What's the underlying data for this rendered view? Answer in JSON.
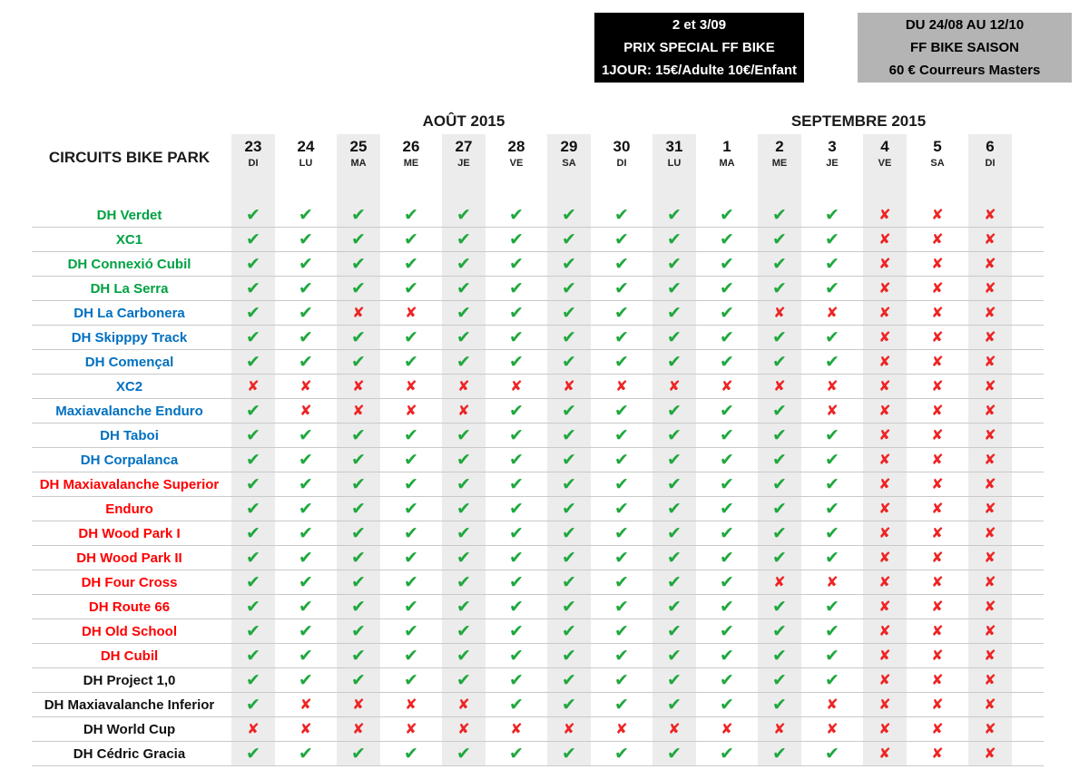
{
  "banners": {
    "special": {
      "bg": "#000000",
      "fg": "#ffffff",
      "lines": [
        "2 et 3/09",
        "PRIX SPECIAL FF BIKE",
        "1JOUR: 15€/Adulte 10€/Enfant"
      ]
    },
    "season": {
      "bg": "#b4b4b4",
      "fg": "#000000",
      "lines": [
        "DU 24/08 AU 12/10",
        "FF BIKE SAISON",
        "60 € Courreurs Masters"
      ]
    }
  },
  "colors": {
    "circuit_green": "#00a143",
    "circuit_blue": "#0070c0",
    "circuit_red": "#ff0000",
    "circuit_black": "#111111",
    "check_green": "#1fa83d",
    "cross_red": "#ee2424",
    "column_band_gray": "#ececec"
  },
  "chart_data": {
    "type": "table",
    "title": "CIRCUITS BIKE PARK",
    "column_groups": [
      {
        "label": "AOÛT 2015",
        "span": 9
      },
      {
        "label": "SEPTEMBRE 2015",
        "span": 6
      }
    ],
    "columns": [
      {
        "day": "23",
        "dow": "DI",
        "shaded": true
      },
      {
        "day": "24",
        "dow": "LU",
        "shaded": false
      },
      {
        "day": "25",
        "dow": "MA",
        "shaded": true
      },
      {
        "day": "26",
        "dow": "ME",
        "shaded": false
      },
      {
        "day": "27",
        "dow": "JE",
        "shaded": true
      },
      {
        "day": "28",
        "dow": "VE",
        "shaded": false
      },
      {
        "day": "29",
        "dow": "SA",
        "shaded": true
      },
      {
        "day": "30",
        "dow": "DI",
        "shaded": false
      },
      {
        "day": "31",
        "dow": "LU",
        "shaded": true
      },
      {
        "day": "1",
        "dow": "MA",
        "shaded": false
      },
      {
        "day": "2",
        "dow": "ME",
        "shaded": true
      },
      {
        "day": "3",
        "dow": "JE",
        "shaded": false
      },
      {
        "day": "4",
        "dow": "VE",
        "shaded": true
      },
      {
        "day": "5",
        "dow": "SA",
        "shaded": false
      },
      {
        "day": "6",
        "dow": "DI",
        "shaded": true
      }
    ],
    "legend": {
      "1": {
        "icon": "check-icon",
        "glyph": "✔",
        "meaning": "circuit open"
      },
      "0": {
        "icon": "cross-icon",
        "glyph": "✘",
        "meaning": "circuit closed"
      }
    },
    "rows": [
      {
        "name": "DH Verdet",
        "color": "green",
        "marks": "111111111111000"
      },
      {
        "name": "XC1",
        "color": "green",
        "marks": "111111111111000"
      },
      {
        "name": "DH Connexió Cubil",
        "color": "green",
        "marks": "111111111111000"
      },
      {
        "name": "DH La Serra",
        "color": "green",
        "marks": "111111111111000"
      },
      {
        "name": "DH La Carbonera",
        "color": "blue",
        "marks": "110011111100000"
      },
      {
        "name": "DH Skipppy Track",
        "color": "blue",
        "marks": "111111111111000"
      },
      {
        "name": "DH Començal",
        "color": "blue",
        "marks": "111111111111000"
      },
      {
        "name": "XC2",
        "color": "blue",
        "marks": "000000000000000"
      },
      {
        "name": "Maxiavalanche Enduro",
        "color": "blue",
        "marks": "100001111110000"
      },
      {
        "name": "DH Taboi",
        "color": "blue",
        "marks": "111111111111000"
      },
      {
        "name": "DH Corpalanca",
        "color": "blue",
        "marks": "111111111111000"
      },
      {
        "name": "DH Maxiavalanche Superior",
        "color": "red",
        "marks": "111111111111000"
      },
      {
        "name": "Enduro",
        "color": "red",
        "marks": "111111111111000"
      },
      {
        "name": "DH Wood Park I",
        "color": "red",
        "marks": "111111111111000"
      },
      {
        "name": "DH Wood Park II",
        "color": "red",
        "marks": "111111111111000"
      },
      {
        "name": "DH Four Cross",
        "color": "red",
        "marks": "111111111100000"
      },
      {
        "name": "DH Route 66",
        "color": "red",
        "marks": "111111111111000"
      },
      {
        "name": "DH Old School",
        "color": "red",
        "marks": "111111111111000"
      },
      {
        "name": "DH Cubil",
        "color": "red",
        "marks": "111111111111000"
      },
      {
        "name": "DH Project 1,0",
        "color": "black",
        "marks": "111111111111000"
      },
      {
        "name": "DH Maxiavalanche Inferior",
        "color": "black",
        "marks": "100001111110000"
      },
      {
        "name": "DH World Cup",
        "color": "black",
        "marks": "000000000000000"
      },
      {
        "name": "DH Cédric Gracia",
        "color": "black",
        "marks": "111111111111000"
      }
    ]
  }
}
